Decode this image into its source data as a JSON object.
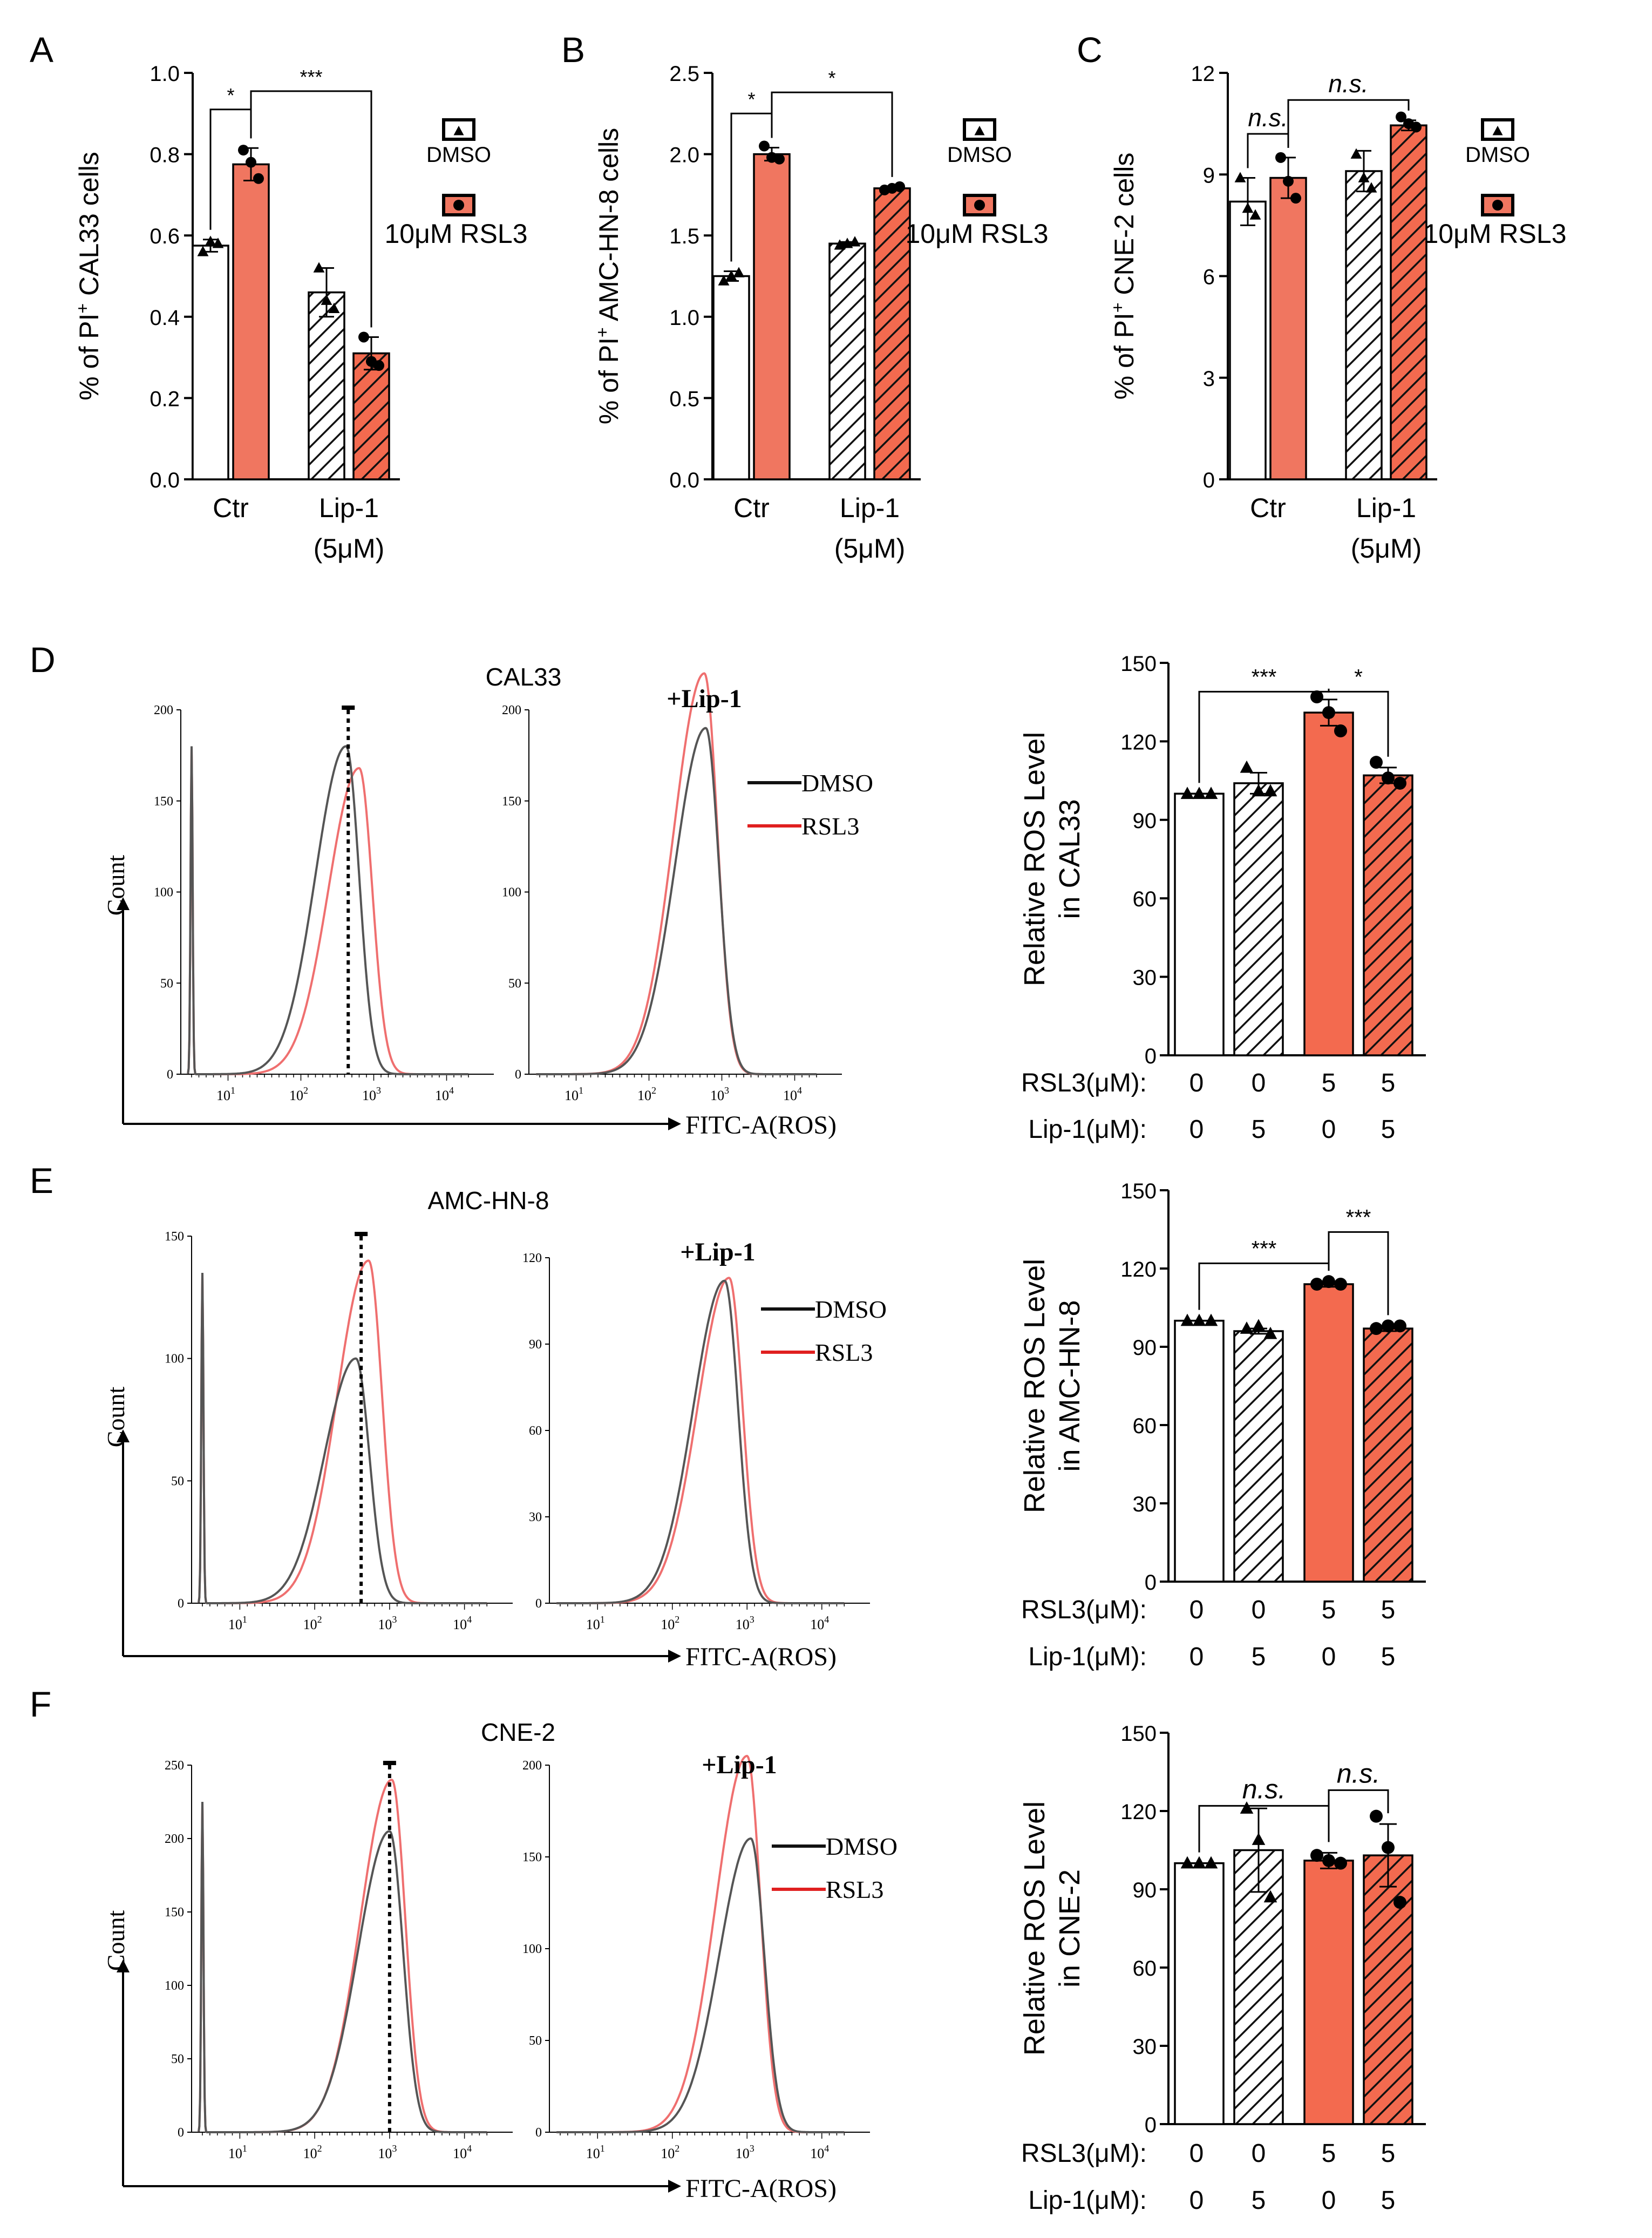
{
  "colors": {
    "ctrl_bar": "#ffffff",
    "rsl3_bar": "#f07660",
    "rsl3_bar_dark": "#f36a4f",
    "dmso_line": "#555555",
    "rsl3_line": "#ef6f6f",
    "axis": "#000000"
  },
  "icons": [
    "triangle-icon",
    "circle-icon"
  ],
  "chart_data": [
    {
      "panel": "A",
      "type": "bar",
      "ylabel_prefix": "% of PI",
      "ylabel_sup": "+",
      "ylabel_suffix": " CAL33  cells",
      "ylim": [
        0,
        1.0
      ],
      "yticks": [
        "0.0",
        "0.2",
        "0.4",
        "0.6",
        "0.8",
        "1.0"
      ],
      "ytick_values": [
        0,
        0.2,
        0.4,
        0.6,
        0.8,
        1.0
      ],
      "groups": [
        "Ctr",
        "Lip-1"
      ],
      "group_sublabel": [
        "",
        "(5μM)"
      ],
      "legend": [
        {
          "name": "DMSO",
          "icon": "triangle-icon"
        },
        {
          "name": "10μM  RSL3",
          "icon": "circle-icon"
        }
      ],
      "bars": [
        {
          "group": "Ctr",
          "series": "DMSO",
          "value": 0.575,
          "err": 0.015,
          "points": [
            0.56,
            0.585,
            0.58
          ],
          "hatch": false
        },
        {
          "group": "Ctr",
          "series": "10μM  RSL3",
          "value": 0.775,
          "err": 0.04,
          "points": [
            0.81,
            0.78,
            0.74
          ],
          "hatch": false
        },
        {
          "group": "Lip-1",
          "series": "DMSO",
          "value": 0.46,
          "err": 0.06,
          "points": [
            0.52,
            0.44,
            0.42
          ],
          "hatch": true
        },
        {
          "group": "Lip-1",
          "series": "10μM  RSL3",
          "value": 0.31,
          "err": 0.04,
          "points": [
            0.35,
            0.29,
            0.28
          ],
          "hatch": true
        }
      ],
      "sig": [
        {
          "from": 0,
          "to": 1,
          "label": "*",
          "level": 0.91
        },
        {
          "from": 1,
          "to": 3,
          "label": "***",
          "level": 0.955
        }
      ]
    },
    {
      "panel": "B",
      "type": "bar",
      "ylabel_prefix": "% of PI",
      "ylabel_sup": "+",
      "ylabel_suffix": " AMC-HN-8 cells",
      "ylim": [
        0,
        2.5
      ],
      "yticks": [
        "0.0",
        "0.5",
        "1.0",
        "1.5",
        "2.0",
        "2.5"
      ],
      "ytick_values": [
        0,
        0.5,
        1.0,
        1.5,
        2.0,
        2.5
      ],
      "groups": [
        "Ctr",
        "Lip-1"
      ],
      "group_sublabel": [
        "",
        "(5μM)"
      ],
      "legend": [
        {
          "name": "DMSO",
          "icon": "triangle-icon"
        },
        {
          "name": "10μM  RSL3",
          "icon": "circle-icon"
        }
      ],
      "bars": [
        {
          "group": "Ctr",
          "series": "DMSO",
          "value": 1.25,
          "err": 0.03,
          "points": [
            1.22,
            1.25,
            1.27
          ],
          "hatch": false
        },
        {
          "group": "Ctr",
          "series": "10μM  RSL3",
          "value": 2.0,
          "err": 0.04,
          "points": [
            2.05,
            1.98,
            1.97
          ],
          "hatch": false
        },
        {
          "group": "Lip-1",
          "series": "DMSO",
          "value": 1.45,
          "err": 0.01,
          "points": [
            1.44,
            1.45,
            1.46
          ],
          "hatch": true
        },
        {
          "group": "Lip-1",
          "series": "10μM  RSL3",
          "value": 1.79,
          "err": 0.01,
          "points": [
            1.78,
            1.79,
            1.8
          ],
          "hatch": true
        }
      ],
      "sig": [
        {
          "from": 0,
          "to": 1,
          "label": "*",
          "level": 2.25
        },
        {
          "from": 1,
          "to": 3,
          "label": "*",
          "level": 2.38
        }
      ]
    },
    {
      "panel": "C",
      "type": "bar",
      "ylabel_prefix": "% of PI",
      "ylabel_sup": "+",
      "ylabel_suffix": " CNE-2 cells",
      "ylim": [
        0,
        12
      ],
      "yticks": [
        "0",
        "3",
        "6",
        "9",
        "12"
      ],
      "ytick_values": [
        0,
        3,
        6,
        9,
        12
      ],
      "groups": [
        "Ctr",
        "Lip-1"
      ],
      "group_sublabel": [
        "",
        "(5μM)"
      ],
      "legend": [
        {
          "name": "DMSO",
          "icon": "triangle-icon"
        },
        {
          "name": "10μM  RSL3",
          "icon": "circle-icon"
        }
      ],
      "bars": [
        {
          "group": "Ctr",
          "series": "DMSO",
          "value": 8.2,
          "err": 0.7,
          "points": [
            8.9,
            8.0,
            7.8
          ],
          "hatch": false
        },
        {
          "group": "Ctr",
          "series": "10μM  RSL3",
          "value": 8.9,
          "err": 0.6,
          "points": [
            9.5,
            8.8,
            8.3
          ],
          "hatch": false
        },
        {
          "group": "Lip-1",
          "series": "DMSO",
          "value": 9.1,
          "err": 0.6,
          "points": [
            9.6,
            8.9,
            8.6
          ],
          "hatch": true
        },
        {
          "group": "Lip-1",
          "series": "10μM  RSL3",
          "value": 10.45,
          "err": 0.15,
          "points": [
            10.7,
            10.5,
            10.4
          ],
          "hatch": true
        }
      ],
      "sig": [
        {
          "from": 0,
          "to": 1,
          "label": "n.s.",
          "level": 10.2,
          "italic": true
        },
        {
          "from": 1,
          "to": 3,
          "label": "n.s.",
          "level": 11.2,
          "italic": true
        }
      ]
    },
    {
      "panel": "D",
      "type": "bar",
      "ylabel_line1": "Relative ROS Level",
      "ylabel_line2": "in CAL33",
      "ylim": [
        0,
        150
      ],
      "yticks": [
        "0",
        "30",
        "60",
        "90",
        "120",
        "150"
      ],
      "ytick_values": [
        0,
        30,
        60,
        90,
        120,
        150
      ],
      "rsl3_row": {
        "label": "RSL3(μM):",
        "values": [
          "0",
          "0",
          "5",
          "5"
        ]
      },
      "lip1_row": {
        "label": "Lip-1(μM):",
        "values": [
          "0",
          "5",
          "0",
          "5"
        ]
      },
      "bars": [
        {
          "value": 100,
          "err": 0,
          "points": [
            100,
            100,
            100
          ],
          "marker": "triangle",
          "hatch": false,
          "fill": "white"
        },
        {
          "value": 104,
          "err": 4,
          "points": [
            110,
            101,
            101
          ],
          "marker": "triangle",
          "hatch": true,
          "fill": "white"
        },
        {
          "value": 131,
          "err": 5,
          "points": [
            137,
            131,
            124
          ],
          "marker": "circle",
          "hatch": false,
          "fill": "red"
        },
        {
          "value": 107,
          "err": 3,
          "points": [
            112,
            106,
            104
          ],
          "marker": "circle",
          "hatch": true,
          "fill": "red"
        }
      ],
      "sig": [
        {
          "from": 0,
          "to": 2,
          "label": "***",
          "level": 139
        },
        {
          "from": 2,
          "to": 3,
          "label": "*",
          "level": 139
        }
      ]
    },
    {
      "panel": "E",
      "type": "bar",
      "ylabel_line1": "Relative ROS Level",
      "ylabel_line2": "in AMC-HN-8",
      "ylim": [
        0,
        150
      ],
      "yticks": [
        "0",
        "30",
        "60",
        "90",
        "120",
        "150"
      ],
      "ytick_values": [
        0,
        30,
        60,
        90,
        120,
        150
      ],
      "rsl3_row": {
        "label": "RSL3(μM):",
        "values": [
          "0",
          "0",
          "5",
          "5"
        ]
      },
      "lip1_row": {
        "label": "Lip-1(μM):",
        "values": [
          "0",
          "5",
          "0",
          "5"
        ]
      },
      "bars": [
        {
          "value": 100,
          "err": 0,
          "points": [
            100,
            100,
            100
          ],
          "marker": "triangle",
          "hatch": false,
          "fill": "white"
        },
        {
          "value": 96,
          "err": 1,
          "points": [
            97,
            98,
            95
          ],
          "marker": "triangle",
          "hatch": true,
          "fill": "white"
        },
        {
          "value": 114,
          "err": 1,
          "points": [
            114,
            115,
            114
          ],
          "marker": "circle",
          "hatch": false,
          "fill": "red"
        },
        {
          "value": 97,
          "err": 1,
          "points": [
            97,
            98,
            98
          ],
          "marker": "circle",
          "hatch": true,
          "fill": "red"
        }
      ],
      "sig": [
        {
          "from": 0,
          "to": 2,
          "label": "***",
          "level": 122
        },
        {
          "from": 2,
          "to": 3,
          "label": "***",
          "level": 134
        }
      ]
    },
    {
      "panel": "F",
      "type": "bar",
      "ylabel_line1": "Relative ROS Level",
      "ylabel_line2": "in CNE-2",
      "ylim": [
        0,
        150
      ],
      "yticks": [
        "0",
        "30",
        "60",
        "90",
        "120",
        "150"
      ],
      "ytick_values": [
        0,
        30,
        60,
        90,
        120,
        150
      ],
      "rsl3_row": {
        "label": "RSL3(μM):",
        "values": [
          "0",
          "0",
          "5",
          "5"
        ]
      },
      "lip1_row": {
        "label": "Lip-1(μM):",
        "values": [
          "0",
          "5",
          "0",
          "5"
        ]
      },
      "bars": [
        {
          "value": 100,
          "err": 0,
          "points": [
            100,
            100,
            100
          ],
          "marker": "triangle",
          "hatch": false,
          "fill": "white"
        },
        {
          "value": 105,
          "err": 16,
          "points": [
            121,
            109,
            87
          ],
          "marker": "triangle",
          "hatch": true,
          "fill": "white"
        },
        {
          "value": 101,
          "err": 3,
          "points": [
            103,
            101,
            100
          ],
          "marker": "circle",
          "hatch": false,
          "fill": "red"
        },
        {
          "value": 103,
          "err": 12,
          "points": [
            118,
            106,
            85
          ],
          "marker": "circle",
          "hatch": true,
          "fill": "red"
        }
      ],
      "sig": [
        {
          "from": 0,
          "to": 2,
          "label": "n.s.",
          "level": 122,
          "italic": true
        },
        {
          "from": 2,
          "to": 3,
          "label": "n.s.",
          "level": 128,
          "italic": true
        }
      ]
    }
  ],
  "histograms": [
    {
      "panel": "D",
      "title": "CAL33",
      "lip_label": "+Lip-1",
      "ylabel": "Count",
      "xlabel": "FITC-A(ROS)",
      "xticks_exp": [
        "1",
        "2",
        "3",
        "4"
      ],
      "left": {
        "yticks": [
          "0",
          "50",
          "100",
          "150",
          "200"
        ],
        "ymax": 200,
        "dmso_peak": 2.62,
        "dmso_height": 180,
        "rsl3_peak": 2.8,
        "rsl3_height": 168,
        "marker": 2.65
      },
      "right": {
        "yticks": [
          "0",
          "50",
          "100",
          "150",
          "200"
        ],
        "ymax": 200,
        "dmso_peak": 2.78,
        "dmso_height": 190,
        "rsl3_peak": 2.76,
        "rsl3_height": 220
      },
      "legend": [
        "DMSO",
        "RSL3"
      ]
    },
    {
      "panel": "E",
      "title": "AMC-HN-8",
      "lip_label": "+Lip-1",
      "ylabel": "Count",
      "xlabel": "FITC-A(ROS)",
      "xticks_exp": [
        "1",
        "2",
        "3",
        "4"
      ],
      "left": {
        "yticks": [
          "0",
          "50",
          "100",
          "150"
        ],
        "ymax": 150,
        "dmso_peak": 2.55,
        "dmso_height": 100,
        "rsl3_peak": 2.72,
        "rsl3_height": 140,
        "marker": 2.62
      },
      "right": {
        "yticks": [
          "0",
          "30",
          "60",
          "90",
          "120"
        ],
        "ymax": 120,
        "dmso_peak": 2.7,
        "dmso_height": 112,
        "rsl3_peak": 2.76,
        "rsl3_height": 113
      },
      "legend": [
        "DMSO",
        "RSL3"
      ]
    },
    {
      "panel": "F",
      "title": "CNE-2",
      "lip_label": "+Lip-1",
      "ylabel": "Count",
      "xlabel": "FITC-A(ROS)",
      "xticks_exp": [
        "1",
        "2",
        "3",
        "4"
      ],
      "left": {
        "yticks": [
          "0",
          "50",
          "100",
          "150",
          "200",
          "250"
        ],
        "ymax": 250,
        "dmso_peak": 3.0,
        "dmso_height": 205,
        "rsl3_peak": 3.03,
        "rsl3_height": 240,
        "marker": 3.0
      },
      "right": {
        "yticks": [
          "0",
          "50",
          "100",
          "150",
          "200"
        ],
        "ymax": 200,
        "dmso_peak": 3.05,
        "dmso_height": 160,
        "rsl3_peak": 3.0,
        "rsl3_height": 205
      },
      "legend": [
        "DMSO",
        "RSL3"
      ]
    }
  ]
}
